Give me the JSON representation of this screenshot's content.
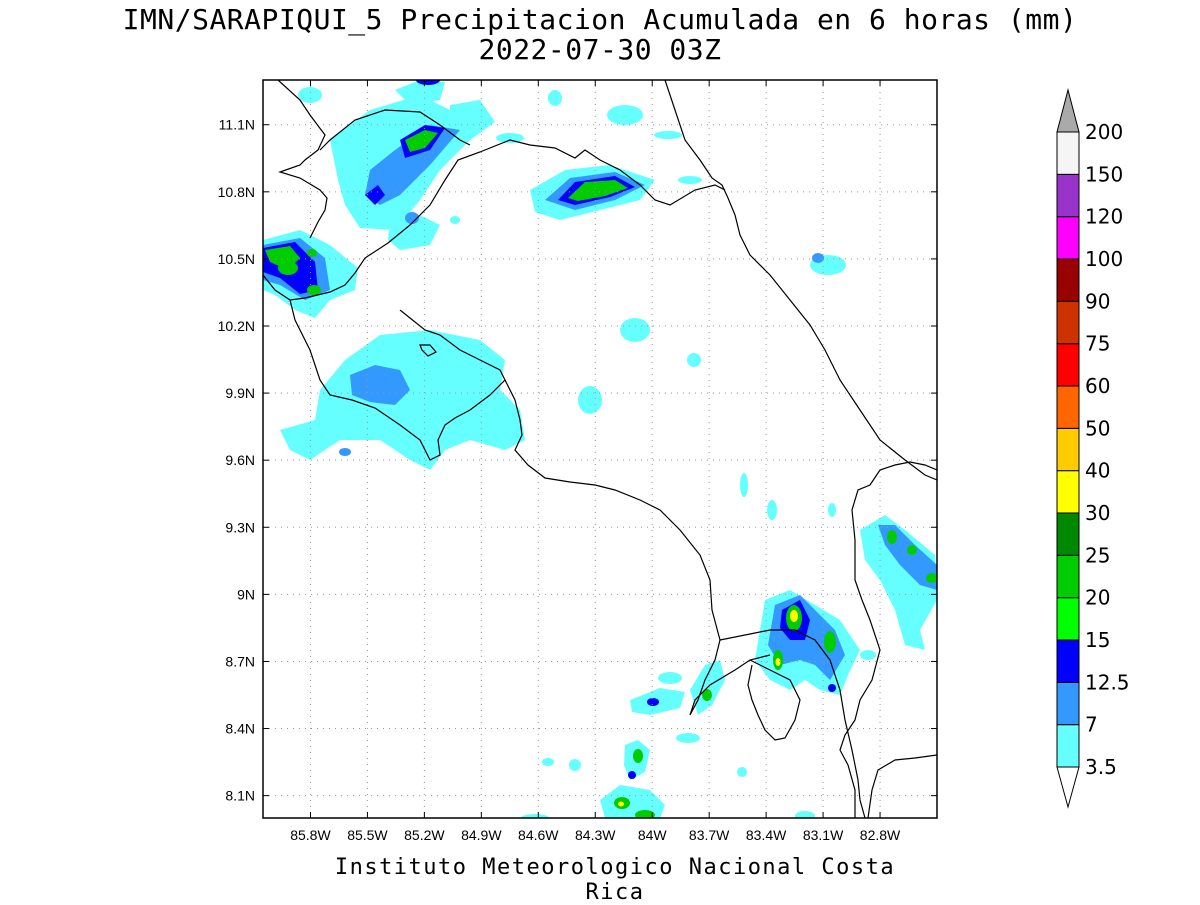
{
  "title": {
    "line1": "IMN/SARAPIQUI_5 Precipitacion Acumulada en 6 horas (mm)",
    "line2": "2022-07-30 03Z"
  },
  "footer": "Instituto Meteorologico Nacional Costa Rica",
  "map": {
    "lon_range": [
      -86.05,
      -82.5
    ],
    "lat_range": [
      8.0,
      11.3
    ],
    "x_ticks": [
      "85.8W",
      "85.5W",
      "85.2W",
      "84.9W",
      "84.6W",
      "84.3W",
      "84W",
      "83.7W",
      "83.4W",
      "83.1W",
      "82.8W"
    ],
    "y_ticks": [
      "11.1N",
      "10.8N",
      "10.5N",
      "10.2N",
      "9.9N",
      "9.6N",
      "9.3N",
      "9N",
      "8.7N",
      "8.4N",
      "8.1N"
    ],
    "grid": true
  },
  "colorbar": {
    "levels": [
      "3.5",
      "7",
      "12.5",
      "15",
      "20",
      "25",
      "30",
      "40",
      "50",
      "60",
      "75",
      "90",
      "100",
      "120",
      "150",
      "200"
    ],
    "colors": [
      "#66ffff",
      "#3399ff",
      "#0000ff",
      "#00ff00",
      "#00cc00",
      "#008800",
      "#ffff00",
      "#ffcc00",
      "#ff6600",
      "#ff0000",
      "#cc3300",
      "#990000",
      "#ff00ff",
      "#9933cc",
      "#f5f5f5",
      "#aaaaaa"
    ]
  }
}
